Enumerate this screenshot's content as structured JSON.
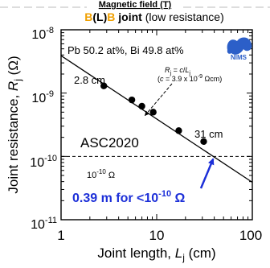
{
  "chart_data": {
    "type": "scatter",
    "header": "Magnetic field (T)",
    "title_parts": [
      "B",
      "(L)",
      "B",
      " joint",
      " (low resistance)"
    ],
    "subtitle": "Pb 50.2 at%, Bi 49.8 at%",
    "logo_text": "NIMS",
    "xlabel_parts": [
      "Joint length, ",
      "L",
      "j",
      " (cm)"
    ],
    "ylabel_parts": [
      "Joint resistance, ",
      "R",
      "j",
      " (Ω)"
    ],
    "xscale": "log",
    "yscale": "log",
    "xlim": [
      1,
      100
    ],
    "ylim": [
      1e-11,
      1e-08
    ],
    "x_tick_labels": [
      "1",
      "10",
      "100"
    ],
    "y_tick_labels": [
      {
        "base": "10",
        "exp": "-8"
      },
      {
        "base": "10",
        "exp": "-9"
      },
      {
        "base": "10",
        "exp": "-10"
      },
      {
        "base": "10",
        "exp": "-11"
      }
    ],
    "series": [
      {
        "x": [
          2.8,
          5.5,
          7.0,
          9.2,
          17.0,
          31.0
        ],
        "y": [
          1.3e-09,
          7.8e-10,
          6.2e-10,
          5e-10,
          2.55e-10,
          1.72e-10
        ]
      }
    ],
    "fit_line": {
      "formula": "R_j = c / L_j",
      "c": 3.9e-09,
      "x_range": [
        1,
        100
      ]
    },
    "threshold": {
      "y": 1e-10,
      "label_parts": [
        "10",
        "-10",
        " Ω"
      ],
      "style": "dashed"
    },
    "annotations": {
      "left_point": "2.8 cm",
      "right_point": "31 cm",
      "formula_line1_parts": [
        "R",
        "j",
        " = ",
        "c",
        "/",
        "L",
        "j"
      ],
      "formula_line2_parts": [
        "(",
        "c",
        " = 3.9 x 10",
        "-9",
        " Ωcm)"
      ],
      "conference": "ASC2020",
      "result_parts": [
        "0.39 m for <10",
        "-10",
        " Ω"
      ],
      "result_arrow_to_x": 39
    },
    "colors": {
      "title_orange": "#f0a000",
      "result_blue": "#1c2fd8",
      "nims_blue": "#2c5fc8"
    }
  }
}
